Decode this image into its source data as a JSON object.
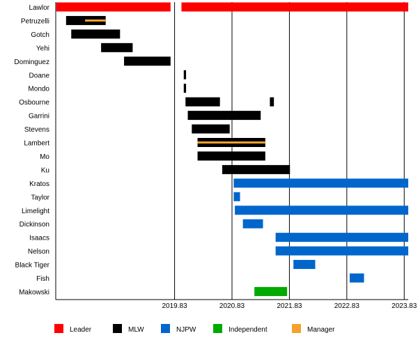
{
  "chart_data": {
    "type": "timeline",
    "title": "",
    "xlim": [
      2017.76,
      2023.9
    ],
    "x_ticks": [
      "2019.83",
      "2020.83",
      "2021.83",
      "2022.83",
      "2023.83"
    ],
    "x_tick_values": [
      2019.83,
      2020.83,
      2021.83,
      2022.83,
      2023.83
    ],
    "grid": "vertical",
    "colors": {
      "Leader": "#ff0000",
      "MLW": "#000000",
      "NJPW": "#0066cc",
      "Independent": "#00aa00",
      "Manager": "#f4a22a"
    },
    "legend": [
      "Leader",
      "MLW",
      "NJPW",
      "Independent",
      "Manager"
    ],
    "legend_placement": "bottom",
    "rows": [
      {
        "name": "Lawlor",
        "bars": [
          {
            "cat": "Leader",
            "start": 2017.77,
            "end": 2019.76
          },
          {
            "cat": "Leader",
            "start": 2019.95,
            "end": 2023.9
          }
        ]
      },
      {
        "name": "Petruzelli",
        "bars": [
          {
            "cat": "MLW",
            "start": 2017.94,
            "end": 2018.63
          },
          {
            "cat": "Manager",
            "start": 2018.27,
            "end": 2018.63,
            "thin": true
          }
        ]
      },
      {
        "name": "Gotch",
        "bars": [
          {
            "cat": "MLW",
            "start": 2018.03,
            "end": 2018.88
          }
        ]
      },
      {
        "name": "Yehi",
        "bars": [
          {
            "cat": "MLW",
            "start": 2018.55,
            "end": 2019.1
          }
        ]
      },
      {
        "name": "Dominguez",
        "bars": [
          {
            "cat": "MLW",
            "start": 2018.95,
            "end": 2019.76
          }
        ]
      },
      {
        "name": "Doane",
        "bars": [
          {
            "cat": "MLW",
            "start": 2019.99,
            "end": 2020.03
          }
        ]
      },
      {
        "name": "Mondo",
        "bars": [
          {
            "cat": "MLW",
            "start": 2019.99,
            "end": 2020.03
          }
        ]
      },
      {
        "name": "Osbourne",
        "bars": [
          {
            "cat": "MLW",
            "start": 2020.02,
            "end": 2020.62
          },
          {
            "cat": "MLW",
            "start": 2021.49,
            "end": 2021.56
          }
        ]
      },
      {
        "name": "Garrini",
        "bars": [
          {
            "cat": "MLW",
            "start": 2020.06,
            "end": 2021.33
          }
        ]
      },
      {
        "name": "Stevens",
        "bars": [
          {
            "cat": "MLW",
            "start": 2020.13,
            "end": 2020.79
          }
        ]
      },
      {
        "name": "Lambert",
        "bars": [
          {
            "cat": "MLW",
            "start": 2020.23,
            "end": 2021.41
          },
          {
            "cat": "Manager",
            "start": 2020.23,
            "end": 2021.41,
            "thin": true
          }
        ]
      },
      {
        "name": "Mo",
        "bars": [
          {
            "cat": "MLW",
            "start": 2020.23,
            "end": 2021.41
          }
        ]
      },
      {
        "name": "Ku",
        "bars": [
          {
            "cat": "MLW",
            "start": 2020.66,
            "end": 2021.84
          }
        ]
      },
      {
        "name": "Kratos",
        "bars": [
          {
            "cat": "NJPW",
            "start": 2020.86,
            "end": 2023.9
          }
        ]
      },
      {
        "name": "Taylor",
        "bars": [
          {
            "cat": "NJPW",
            "start": 2020.86,
            "end": 2020.97
          }
        ]
      },
      {
        "name": "Limelight",
        "bars": [
          {
            "cat": "NJPW",
            "start": 2020.88,
            "end": 2023.9
          }
        ]
      },
      {
        "name": "Dickinson",
        "bars": [
          {
            "cat": "NJPW",
            "start": 2021.02,
            "end": 2021.37
          }
        ]
      },
      {
        "name": "Isaacs",
        "bars": [
          {
            "cat": "NJPW",
            "start": 2021.59,
            "end": 2023.9
          }
        ]
      },
      {
        "name": "Nelson",
        "bars": [
          {
            "cat": "NJPW",
            "start": 2021.59,
            "end": 2023.9
          }
        ]
      },
      {
        "name": "Black Tiger",
        "bars": [
          {
            "cat": "NJPW",
            "start": 2021.9,
            "end": 2022.28
          }
        ]
      },
      {
        "name": "Fish",
        "bars": [
          {
            "cat": "NJPW",
            "start": 2022.88,
            "end": 2023.13
          }
        ]
      },
      {
        "name": "Makowski",
        "bars": [
          {
            "cat": "Independent",
            "start": 2021.22,
            "end": 2021.79
          }
        ]
      }
    ]
  }
}
